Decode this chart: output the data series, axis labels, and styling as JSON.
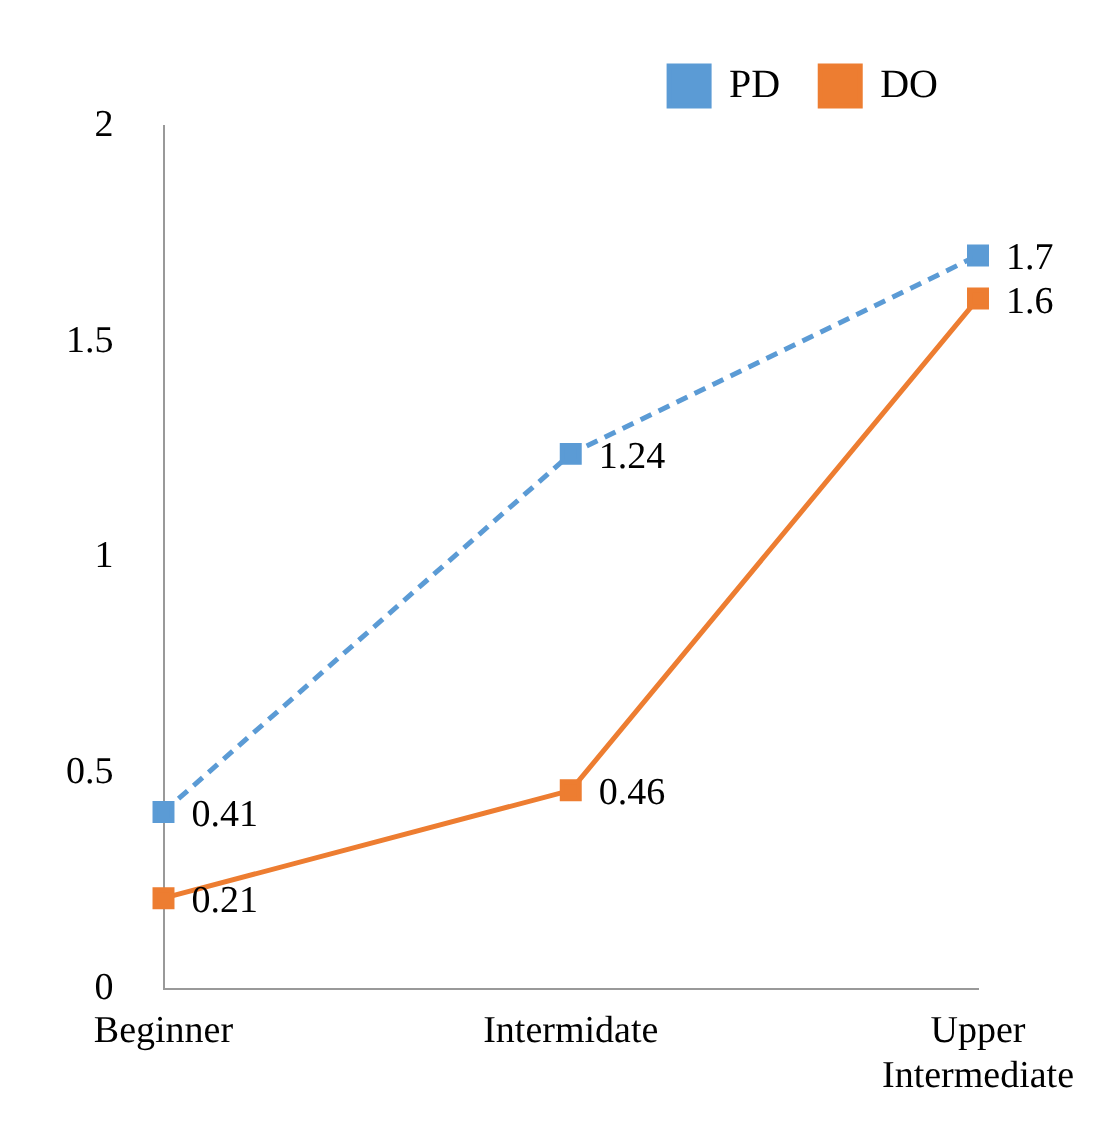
{
  "chart_data": {
    "type": "line",
    "categories": [
      "Beginner",
      "Intermidate",
      "Upper Intermediate"
    ],
    "series": [
      {
        "name": "PD",
        "color": "#5b9bd5",
        "values": [
          0.41,
          1.24,
          1.7
        ],
        "line_style": "dashed"
      },
      {
        "name": "DO",
        "color": "#ed7d31",
        "values": [
          0.21,
          0.46,
          1.6
        ],
        "line_style": "solid"
      }
    ],
    "ylim": [
      0,
      2
    ],
    "yticks": [
      0,
      0.5,
      1,
      1.5,
      2
    ],
    "grid": false,
    "legend": "top right",
    "marker": "square",
    "data_labels": true
  }
}
